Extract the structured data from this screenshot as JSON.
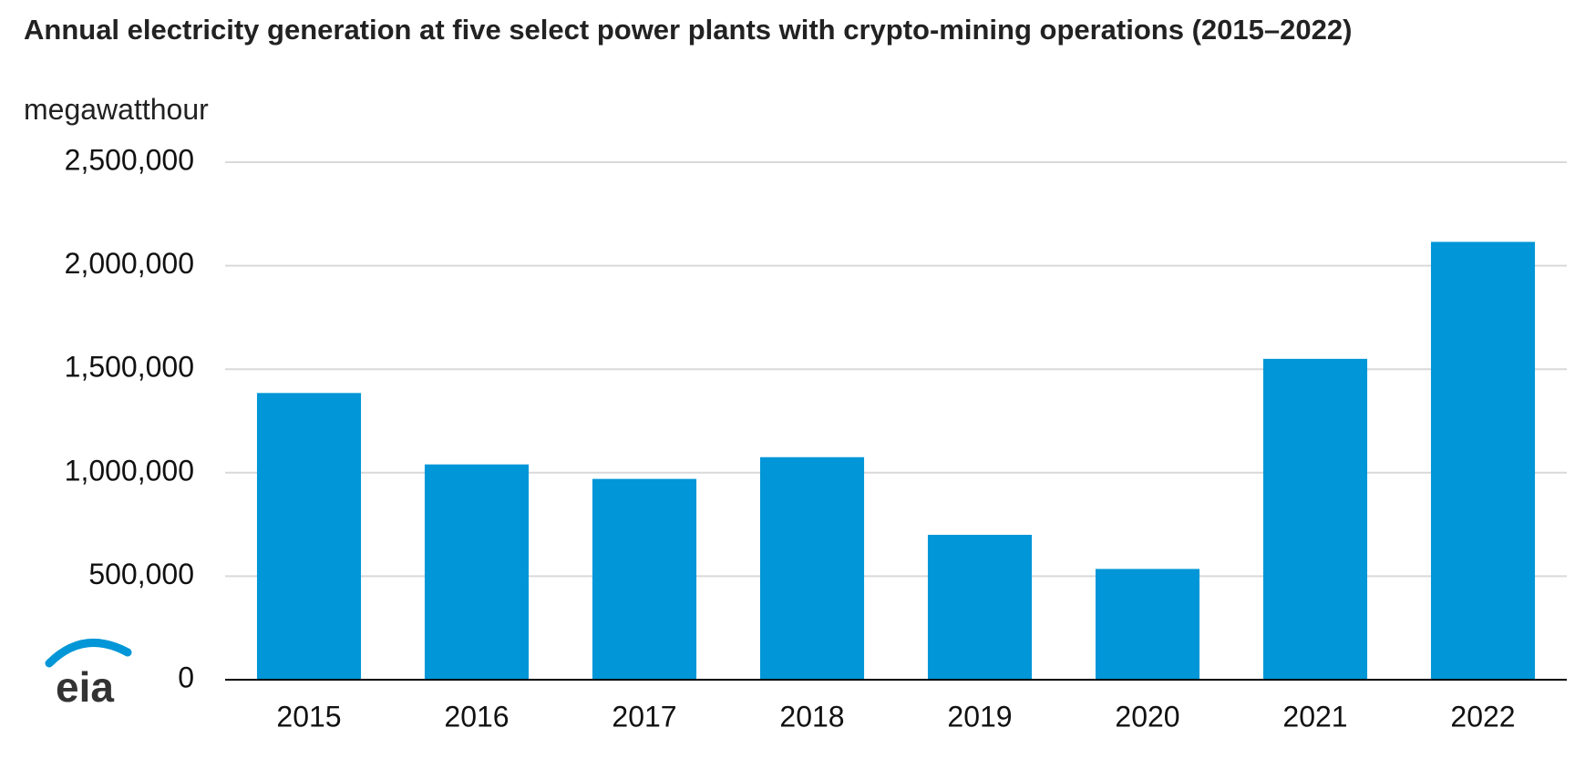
{
  "chart_data": {
    "type": "bar",
    "title": "Annual electricity generation at five select power plants with crypto-mining operations (2015–2022)",
    "y_label": "megawatthour",
    "logo": "eia",
    "categories": [
      "2015",
      "2016",
      "2017",
      "2018",
      "2019",
      "2020",
      "2021",
      "2022"
    ],
    "values": [
      1385000,
      1040000,
      970000,
      1075000,
      700000,
      535000,
      1550000,
      2115000
    ],
    "color": "#0096d7",
    "ylim": [
      0,
      2500000
    ],
    "yticks": [
      0,
      {
        "value": 500000,
        "label": "500,000"
      },
      {
        "value": 1000000,
        "label": "1,000,000"
      },
      {
        "value": 1500000,
        "label": "1,500,000"
      },
      {
        "value": 2000000,
        "label": "2,000,000"
      },
      {
        "value": 2500000,
        "label": "2,500,000"
      }
    ],
    "grid": true
  }
}
